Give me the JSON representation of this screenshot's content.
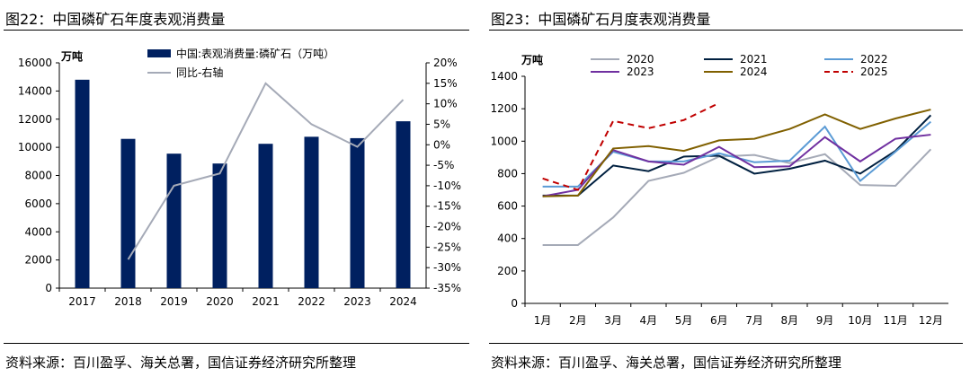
{
  "left": {
    "title": "图22：中国磷矿石年度表观消费量",
    "source": "资料来源：百川盈孚、海关总署，国信证券经济研究所整理",
    "chart_data": {
      "type": "bar",
      "categories": [
        "2017",
        "2018",
        "2019",
        "2020",
        "2021",
        "2022",
        "2023",
        "2024"
      ],
      "series": [
        {
          "name": "中国:表观消费量:磷矿石（万吨）",
          "type": "bar",
          "axis": "left",
          "values": [
            14800,
            10600,
            9550,
            8850,
            10250,
            10750,
            10650,
            11850
          ],
          "color": "#002060"
        },
        {
          "name": "同比-右轴",
          "type": "line",
          "axis": "right",
          "values": [
            null,
            -28,
            -10,
            -7,
            15,
            5,
            -0.5,
            11
          ],
          "color": "#a5aab7"
        }
      ],
      "ylabel": "万吨",
      "ylim": [
        0,
        16000
      ],
      "yticks": [
        "0",
        "2000",
        "4000",
        "6000",
        "8000",
        "10000",
        "12000",
        "14000",
        "16000"
      ],
      "y2lim": [
        -35,
        20
      ],
      "y2ticks": [
        "-35%",
        "-30%",
        "-25%",
        "-20%",
        "-15%",
        "-10%",
        "-5%",
        "0%",
        "5%",
        "10%",
        "15%",
        "20%"
      ],
      "grid": false,
      "legend": "top"
    }
  },
  "right": {
    "title": "图23：中国磷矿石月度表观消费量",
    "source": "资料来源：百川盈孚、海关总署，国信证券经济研究所整理",
    "chart_data": {
      "type": "line",
      "categories": [
        "1月",
        "2月",
        "3月",
        "4月",
        "5月",
        "6月",
        "7月",
        "8月",
        "9月",
        "10月",
        "11月",
        "12月"
      ],
      "ylabel": "万吨",
      "ylim": [
        0,
        1400
      ],
      "yticks": [
        "0",
        "200",
        "400",
        "600",
        "800",
        "1000",
        "1200",
        "1400"
      ],
      "grid": false,
      "legend": "top",
      "series": [
        {
          "name": "2020",
          "color": "#a5aab7",
          "dash": false,
          "values": [
            360,
            360,
            530,
            755,
            805,
            905,
            915,
            865,
            920,
            730,
            725,
            950
          ]
        },
        {
          "name": "2021",
          "color": "#002040",
          "dash": false,
          "values": [
            665,
            665,
            850,
            815,
            905,
            910,
            800,
            830,
            880,
            800,
            940,
            1160
          ]
        },
        {
          "name": "2022",
          "color": "#5b9bd5",
          "dash": false,
          "values": [
            720,
            720,
            935,
            875,
            875,
            925,
            870,
            880,
            1090,
            755,
            935,
            1120
          ]
        },
        {
          "name": "2023",
          "color": "#7030a0",
          "dash": false,
          "values": [
            660,
            700,
            945,
            875,
            855,
            965,
            840,
            845,
            1025,
            875,
            1015,
            1040
          ]
        },
        {
          "name": "2024",
          "color": "#806000",
          "dash": false,
          "values": [
            660,
            665,
            955,
            970,
            940,
            1005,
            1015,
            1075,
            1165,
            1075,
            1140,
            1195
          ]
        },
        {
          "name": "2025",
          "color": "#c00000",
          "dash": true,
          "values": [
            770,
            700,
            1125,
            1080,
            1130,
            1235,
            null,
            null,
            null,
            null,
            null,
            null
          ]
        }
      ]
    }
  }
}
